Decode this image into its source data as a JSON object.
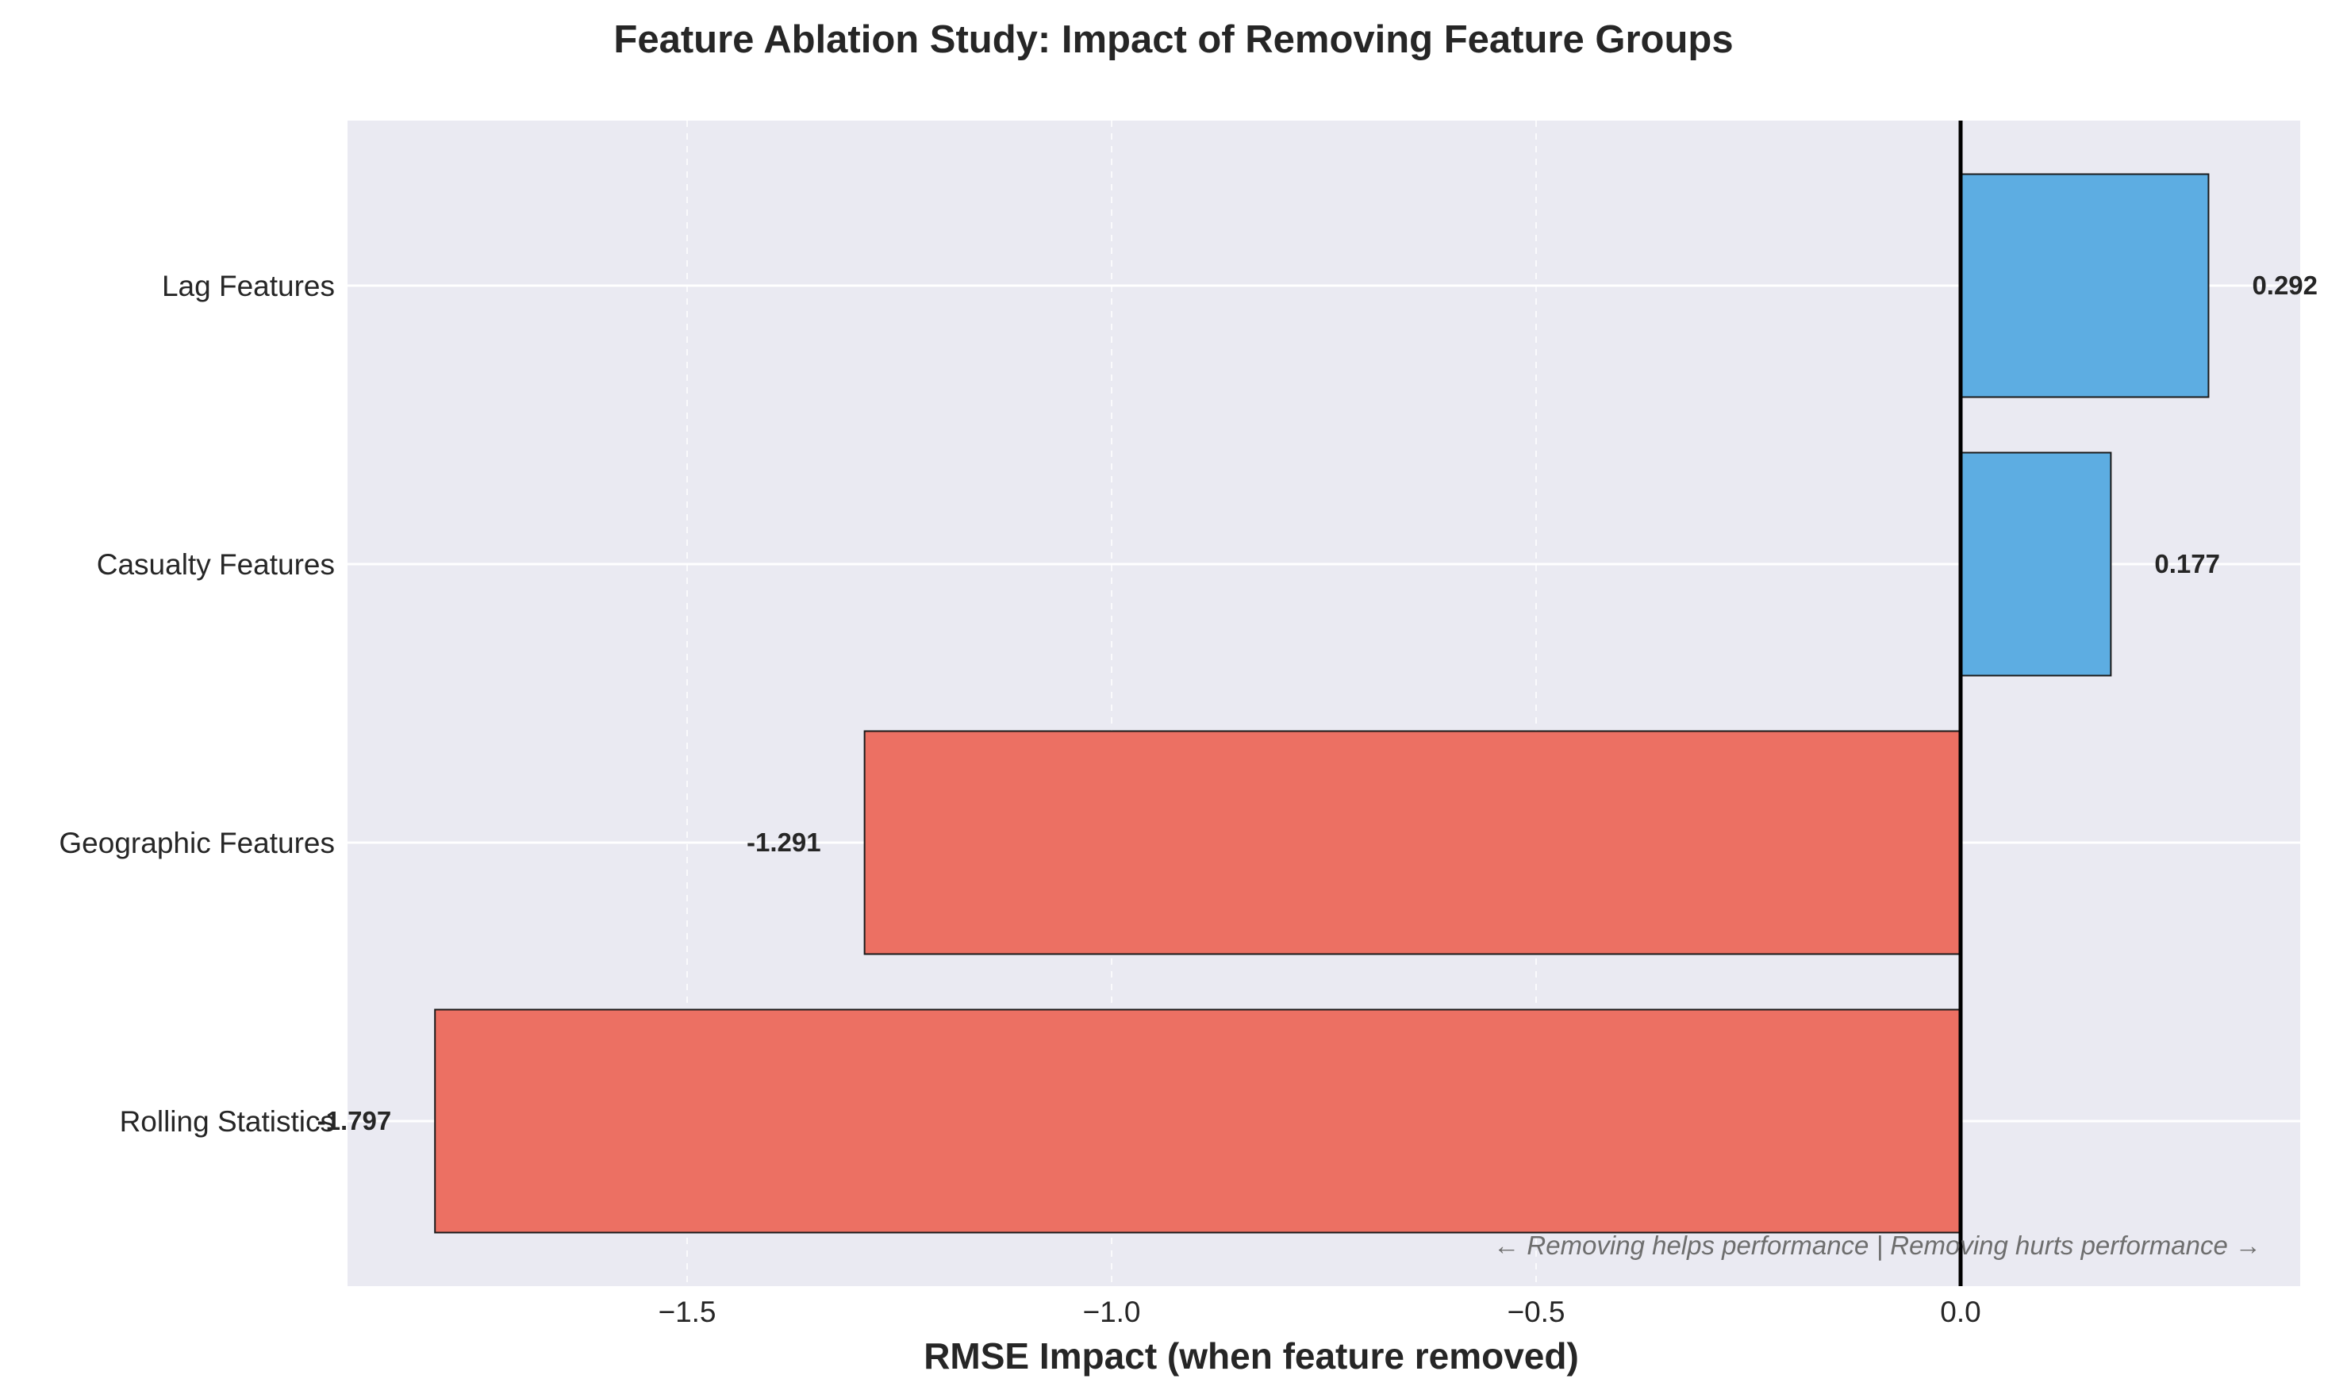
{
  "chart_data": {
    "type": "bar",
    "orientation": "horizontal",
    "title": "Feature Ablation Study: Impact of Removing Feature Groups",
    "xlabel": "RMSE Impact (when feature removed)",
    "ylabel": "",
    "categories": [
      "Lag Features",
      "Casualty Features",
      "Geographic Features",
      "Rolling Statistics"
    ],
    "values": [
      0.292,
      0.177,
      -1.291,
      -1.797
    ],
    "value_labels": [
      "0.292",
      "0.177",
      "-1.291",
      "-1.797"
    ],
    "xlim": [
      -1.9,
      0.4
    ],
    "xticks": [
      -1.5,
      -1.0,
      -0.5,
      0.0
    ],
    "xtick_labels": [
      "−1.5",
      "−1.0",
      "−0.5",
      "0.0"
    ],
    "grid": true,
    "zero_line": true,
    "annotation": "← Removing helps performance | Removing hurts performance →",
    "colors": {
      "positive": "#5dade2",
      "negative": "#ec7063",
      "plot_background": "#eaeaf2",
      "edge": "#1a1a1a",
      "zero_line": "#000000",
      "grid": "#ffffff"
    }
  }
}
